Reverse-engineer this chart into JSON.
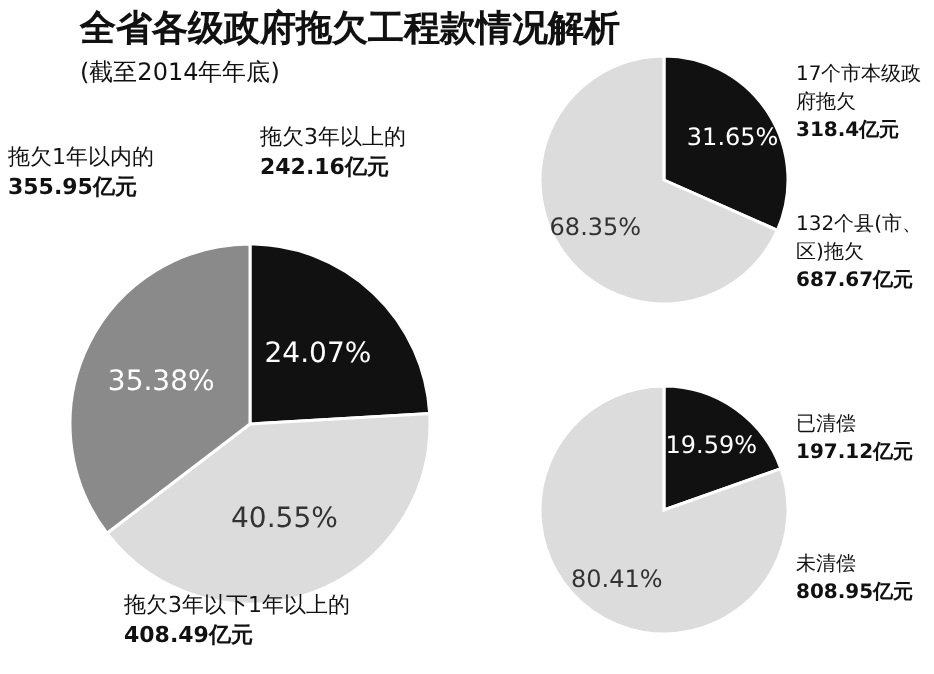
{
  "chart_data": [
    {
      "type": "pie",
      "title": "全省各级政府拖欠工程款情况解析",
      "subtitle": "(截至2014年年底)",
      "categories": [
        "拖欠3年以上的\n242.16亿元",
        "拖欠3年以下1年以上的\n408.49亿元",
        "拖欠1年以内的\n355.95亿元"
      ],
      "values": [
        24.07,
        40.55,
        35.38
      ],
      "value_labels": [
        "24.07%",
        "40.55%",
        "35.38%"
      ],
      "colors": [
        "#111111",
        "#dcdcdc",
        "#8a8a8a"
      ]
    },
    {
      "type": "pie",
      "categories": [
        "17个市本级政府拖欠\n318.4亿元",
        "132个县(市、区)拖欠\n687.67亿元"
      ],
      "values": [
        31.65,
        68.35
      ],
      "value_labels": [
        "31.65%",
        "68.35%"
      ],
      "colors": [
        "#111111",
        "#dcdcdc"
      ]
    },
    {
      "type": "pie",
      "categories": [
        "已清偿\n197.12亿元",
        "未清偿\n808.95亿元"
      ],
      "values": [
        19.59,
        80.41
      ],
      "value_labels": [
        "19.59%",
        "80.41%"
      ],
      "colors": [
        "#111111",
        "#dcdcdc"
      ]
    }
  ]
}
